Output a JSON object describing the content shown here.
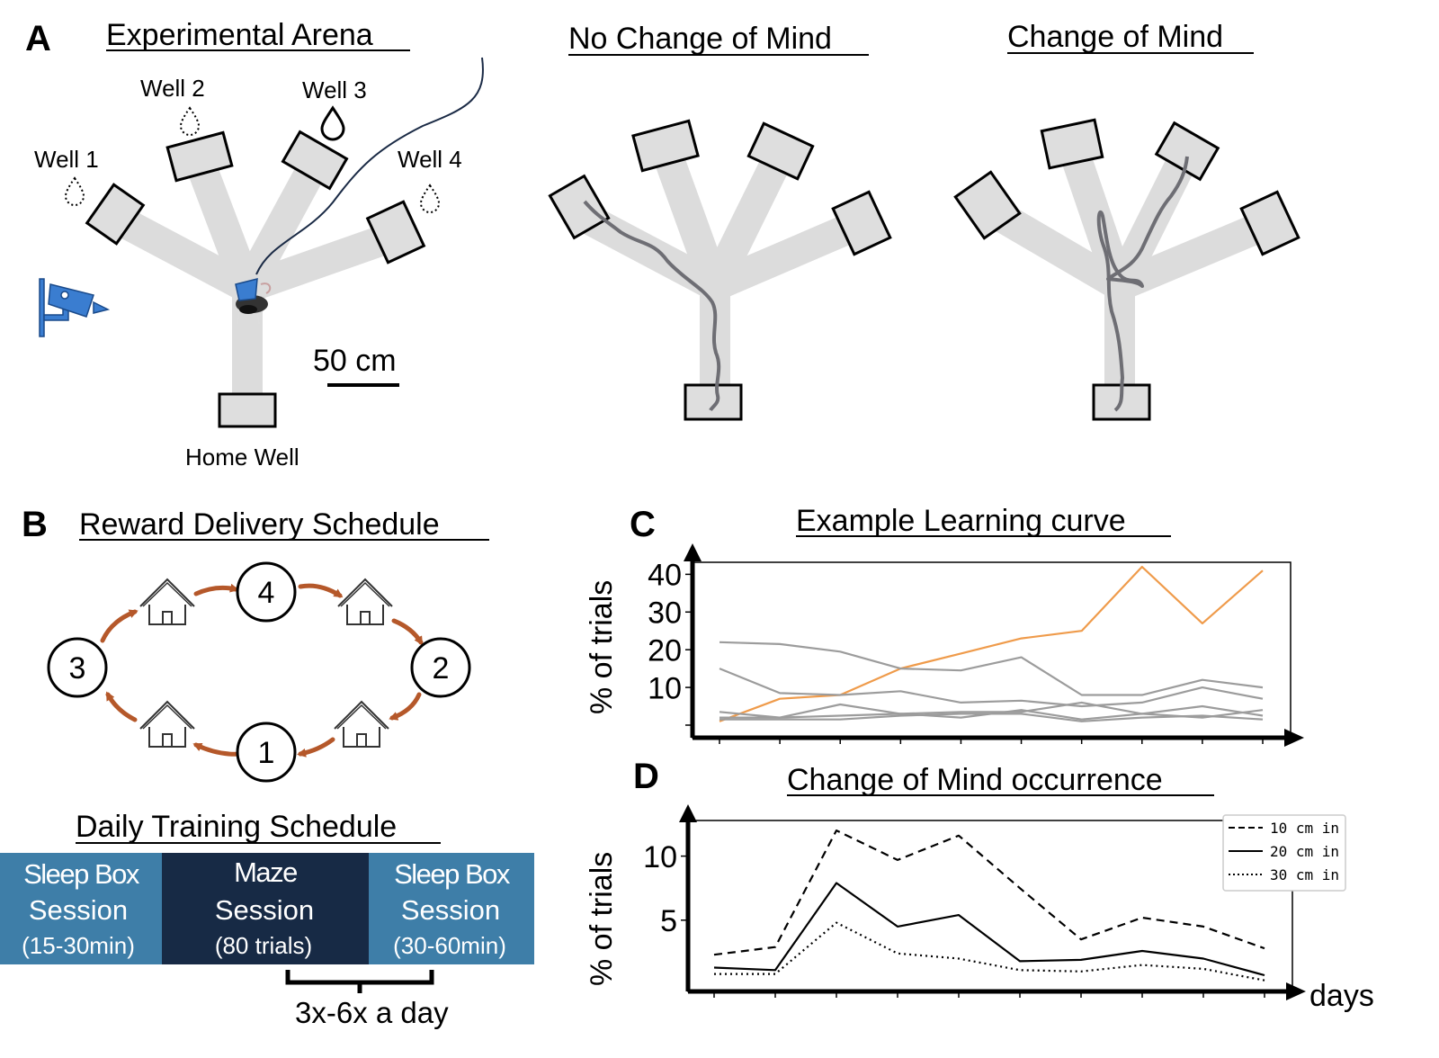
{
  "panel_a": {
    "letter": "A",
    "arena_title": "Experimental Arena",
    "wells": [
      "Well 1",
      "Well 2",
      "Well 3",
      "Well 4"
    ],
    "home_well": "Home Well",
    "scale_bar": "50 cm",
    "no_com_title": "No Change of Mind",
    "com_title": "Change of Mind",
    "icons": [
      "camera-icon",
      "water-drop-icon",
      "rat-icon"
    ]
  },
  "panel_b": {
    "letter": "B",
    "title": "Reward Delivery Schedule",
    "nodes": [
      "1",
      "2",
      "3",
      "4"
    ],
    "daily_title": "Daily Training Schedule",
    "blocks": [
      {
        "name": "Sleep Box",
        "line2": "Session",
        "line3": "(15-30min)",
        "color": "#3e7ea8"
      },
      {
        "name": "Maze",
        "line2": "Session",
        "line3": "(80 trials)",
        "color": "#172a45"
      },
      {
        "name": "Sleep Box",
        "line2": "Session",
        "line3": "(30-60min)",
        "color": "#3e7ea8"
      }
    ],
    "repeat": "3x-6x a day",
    "arrow_color": "#b5582a",
    "icons": [
      "house-icon"
    ]
  },
  "panel_c": {
    "letter": "C"
  },
  "panel_d": {
    "letter": "D"
  },
  "chart_data": [
    {
      "type": "line",
      "title": "Example Learning curve",
      "ylabel": "% of trials",
      "xlabel": "",
      "x": [
        1,
        2,
        3,
        4,
        5,
        6,
        7,
        8,
        9,
        10
      ],
      "ylim": [
        0,
        42
      ],
      "yticks": [
        "10",
        "20",
        "30",
        "40"
      ],
      "ytick_values": [
        10,
        20,
        30,
        40
      ],
      "grid": false,
      "series": [
        {
          "color": "#ef9b4b",
          "values": [
            1,
            7,
            8,
            15,
            19,
            23,
            25,
            42,
            27,
            41
          ]
        },
        {
          "color": "#9c9c9c",
          "values": [
            22,
            21.5,
            19.5,
            15,
            14.5,
            18,
            8,
            8,
            12,
            10
          ]
        },
        {
          "color": "#9c9c9c",
          "values": [
            15,
            8.5,
            8,
            9,
            6,
            6.5,
            5,
            6,
            10,
            7
          ]
        },
        {
          "color": "#9c9c9c",
          "values": [
            3.5,
            2,
            5.5,
            3,
            3.5,
            3.5,
            6,
            3,
            5,
            2.5
          ]
        },
        {
          "color": "#9c9c9c",
          "values": [
            2,
            2,
            2.5,
            3,
            2,
            4,
            1.5,
            3,
            2,
            4
          ]
        },
        {
          "color": "#9c9c9c",
          "values": [
            1.5,
            1.5,
            1.5,
            2.5,
            3,
            3,
            1,
            2,
            2.5,
            1.5
          ]
        }
      ]
    },
    {
      "type": "line",
      "title": "Change of Mind occurrence",
      "ylabel": "% of trials",
      "xlabel": "days",
      "x": [
        1,
        2,
        3,
        4,
        5,
        6,
        7,
        8,
        9,
        10
      ],
      "ylim": [
        0,
        12.5
      ],
      "yticks": [
        "5",
        "10"
      ],
      "ytick_values": [
        5,
        10
      ],
      "legend": "top-right",
      "grid": false,
      "series": [
        {
          "name": "10 cm in",
          "dash": "dashed",
          "values": [
            2.3,
            2.9,
            12,
            9.7,
            11.6,
            7.5,
            3.5,
            5.2,
            4.5,
            2.8
          ]
        },
        {
          "name": "20 cm in",
          "dash": "solid",
          "values": [
            1.3,
            1.1,
            7.9,
            4.5,
            5.4,
            1.8,
            1.9,
            2.6,
            2.0,
            0.7
          ]
        },
        {
          "name": "30 cm in",
          "dash": "dotted",
          "values": [
            0.8,
            0.8,
            4.8,
            2.4,
            2.0,
            1.1,
            1.0,
            1.5,
            1.2,
            0.3
          ]
        }
      ]
    }
  ]
}
